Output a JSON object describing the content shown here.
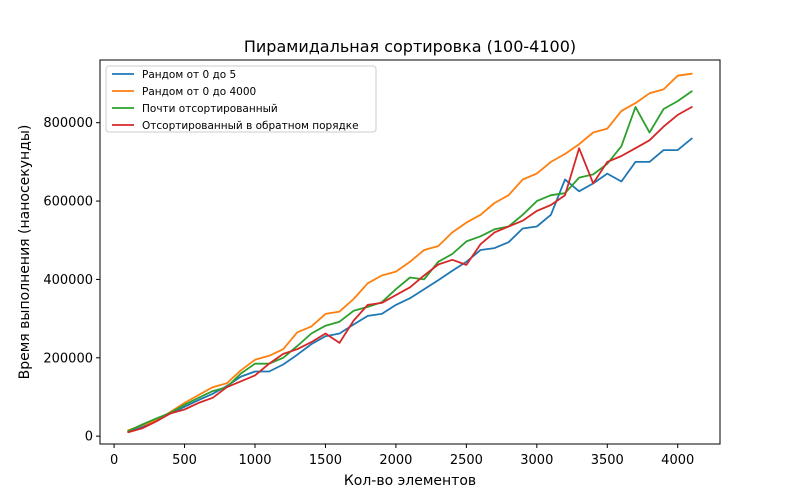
{
  "chart_data": {
    "type": "line",
    "title": "Пирамидальная сортировка (100-4100)",
    "xlabel": "Кол-во элементов",
    "ylabel": "Время выполнения (наносекунды)",
    "xlim": [
      -100,
      4300
    ],
    "ylim": [
      -20000,
      960000
    ],
    "xticks": [
      0,
      500,
      1000,
      1500,
      2000,
      2500,
      3000,
      3500,
      4000
    ],
    "yticks": [
      0,
      200000,
      400000,
      600000,
      800000
    ],
    "grid": false,
    "legend_position": "top-left",
    "x": [
      100,
      200,
      300,
      400,
      500,
      600,
      700,
      800,
      900,
      1000,
      1100,
      1200,
      1300,
      1400,
      1500,
      1600,
      1700,
      1800,
      1900,
      2000,
      2100,
      2200,
      2300,
      2400,
      2500,
      2600,
      2700,
      2800,
      2900,
      3000,
      3100,
      3200,
      3300,
      3400,
      3500,
      3600,
      3700,
      3800,
      3900,
      4000,
      4100
    ],
    "series": [
      {
        "name": "Рандом от 0 до 5",
        "color": "#1f77b4",
        "values": [
          12000,
          25000,
          40000,
          58000,
          75000,
          92000,
          108000,
          128000,
          152000,
          165000,
          165000,
          183000,
          208000,
          235000,
          255000,
          262000,
          285000,
          307000,
          312000,
          335000,
          352000,
          375000,
          398000,
          422000,
          445000,
          475000,
          480000,
          495000,
          530000,
          535000,
          565000,
          655000,
          625000,
          645000,
          670000,
          650000,
          700000,
          700000,
          730000,
          730000,
          760000
        ]
      },
      {
        "name": "Рандом от 0 до 4000",
        "color": "#ff7f0e",
        "values": [
          15000,
          28000,
          40000,
          62000,
          85000,
          105000,
          125000,
          135000,
          168000,
          195000,
          205000,
          222000,
          265000,
          280000,
          312000,
          318000,
          350000,
          390000,
          410000,
          420000,
          445000,
          475000,
          485000,
          520000,
          545000,
          565000,
          595000,
          615000,
          655000,
          670000,
          700000,
          720000,
          745000,
          775000,
          785000,
          830000,
          850000,
          875000,
          885000,
          920000,
          925000
        ]
      },
      {
        "name": "Почти отсортированный",
        "color": "#2ca02c",
        "values": [
          13000,
          30000,
          45000,
          60000,
          80000,
          98000,
          115000,
          125000,
          160000,
          185000,
          185000,
          200000,
          230000,
          262000,
          282000,
          292000,
          320000,
          330000,
          342000,
          375000,
          405000,
          400000,
          445000,
          465000,
          497000,
          510000,
          528000,
          535000,
          565000,
          600000,
          615000,
          620000,
          660000,
          668000,
          695000,
          740000,
          840000,
          775000,
          835000,
          855000,
          880000
        ]
      },
      {
        "name": "Отсортированный в обратном порядке",
        "color": "#d62728",
        "values": [
          10000,
          20000,
          38000,
          58000,
          68000,
          85000,
          98000,
          125000,
          140000,
          155000,
          185000,
          210000,
          222000,
          240000,
          262000,
          238000,
          295000,
          335000,
          340000,
          360000,
          380000,
          410000,
          438000,
          450000,
          437000,
          490000,
          520000,
          535000,
          550000,
          575000,
          590000,
          615000,
          735000,
          645000,
          700000,
          715000,
          735000,
          755000,
          790000,
          820000,
          840000
        ]
      }
    ]
  }
}
